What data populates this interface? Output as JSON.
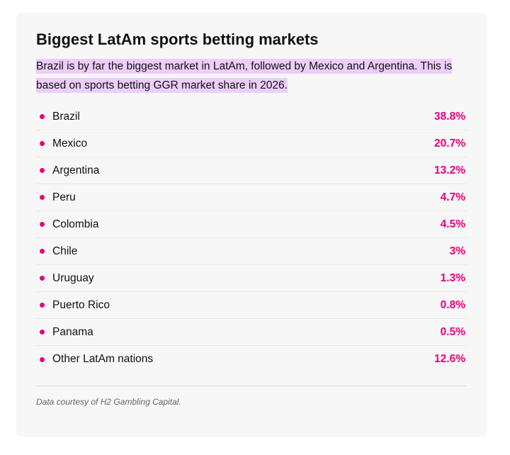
{
  "chart_data": {
    "type": "table",
    "title": "Biggest LatAm sports betting markets",
    "subtitle": "Brazil is by far the biggest market in LatAm, followed by Mexico and Argentina. This is based on sports betting GGR market share in 2026.",
    "categories": [
      "Brazil",
      "Mexico",
      "Argentina",
      "Peru",
      "Colombia",
      "Chile",
      "Uruguay",
      "Puerto Rico",
      "Panama",
      "Other LatAm nations"
    ],
    "values": [
      "38.8%",
      "20.7%",
      "13.2%",
      "4.7%",
      "4.5%",
      "3%",
      "1.3%",
      "0.8%",
      "0.5%",
      "12.6%"
    ],
    "source": "Data courtesy of H2 Gambling Capital."
  },
  "colors": {
    "accent": "#e6007e",
    "highlight": "#eccdfb",
    "card_background": "#f7f7f7"
  }
}
